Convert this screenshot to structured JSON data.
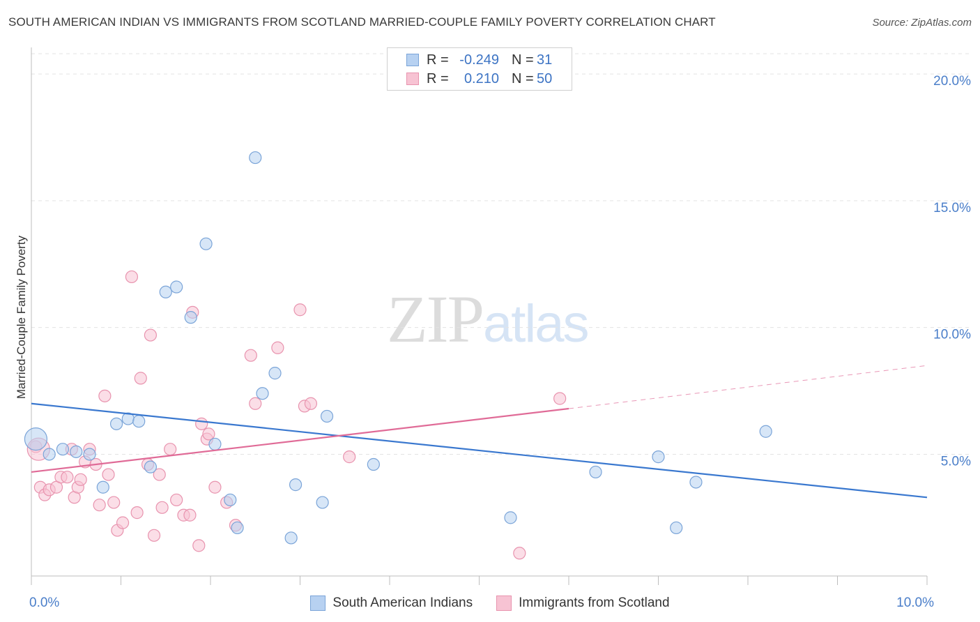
{
  "title": "SOUTH AMERICAN INDIAN VS IMMIGRANTS FROM SCOTLAND MARRIED-COUPLE FAMILY POVERTY CORRELATION CHART",
  "source": "Source: ZipAtlas.com",
  "watermark": {
    "zip": "ZIP",
    "atlas": "atlas"
  },
  "colors": {
    "blue_fill": "#b7d1f1",
    "blue_stroke": "#7aa4d8",
    "blue_line": "#3a78cf",
    "pink_fill": "#f7c3d3",
    "pink_stroke": "#e893ae",
    "pink_line": "#e06b97",
    "grid": "#e3e3e3",
    "axis": "#bdbdbd"
  },
  "stats": [
    {
      "r_label": "R =",
      "r_value": "-0.249",
      "n_label": "N =",
      "n_value": "31"
    },
    {
      "r_label": "R =",
      "r_value": "0.210",
      "n_label": "N =",
      "n_value": "50"
    }
  ],
  "chart_data": {
    "type": "scatter",
    "title": "SOUTH AMERICAN INDIAN VS IMMIGRANTS FROM SCOTLAND MARRIED-COUPLE FAMILY POVERTY CORRELATION CHART",
    "xlabel": "",
    "ylabel": "Married-Couple Family Poverty",
    "xlim": [
      0,
      10
    ],
    "ylim": [
      0.2,
      20.8
    ],
    "x_tick_labels": [
      {
        "value": 0,
        "label": "0.0%"
      },
      {
        "value": 10,
        "label": "10.0%"
      }
    ],
    "y_ticks": [
      {
        "value": 5,
        "label": "5.0%"
      },
      {
        "value": 10,
        "label": "10.0%"
      },
      {
        "value": 15,
        "label": "15.0%"
      },
      {
        "value": 20,
        "label": "20.0%"
      }
    ],
    "grid": true,
    "legend": [
      "South American Indians",
      "Immigrants from Scotland"
    ],
    "series": [
      {
        "name": "South American Indians",
        "color": "#b7d1f1",
        "points": [
          [
            0.05,
            5.6
          ],
          [
            0.2,
            5.0
          ],
          [
            0.35,
            5.2
          ],
          [
            0.5,
            5.1
          ],
          [
            0.65,
            5.0
          ],
          [
            0.8,
            3.7
          ],
          [
            0.95,
            6.2
          ],
          [
            1.08,
            6.4
          ],
          [
            1.2,
            6.3
          ],
          [
            1.33,
            4.5
          ],
          [
            1.5,
            11.4
          ],
          [
            1.62,
            11.6
          ],
          [
            1.78,
            10.4
          ],
          [
            1.95,
            13.3
          ],
          [
            2.05,
            5.4
          ],
          [
            2.22,
            3.2
          ],
          [
            2.3,
            2.1
          ],
          [
            2.5,
            16.7
          ],
          [
            2.58,
            7.4
          ],
          [
            2.72,
            8.2
          ],
          [
            2.9,
            1.7
          ],
          [
            2.95,
            3.8
          ],
          [
            3.25,
            3.1
          ],
          [
            3.3,
            6.5
          ],
          [
            3.82,
            4.6
          ],
          [
            5.35,
            2.5
          ],
          [
            6.3,
            4.3
          ],
          [
            7.0,
            4.9
          ],
          [
            7.2,
            2.1
          ],
          [
            7.42,
            3.9
          ],
          [
            8.2,
            5.9
          ]
        ],
        "trend": {
          "x0": 0,
          "y0": 7.0,
          "x1": 10,
          "y1": 3.3
        }
      },
      {
        "name": "Immigrants from Scotland",
        "color": "#f7c3d3",
        "points": [
          [
            0.05,
            5.3
          ],
          [
            0.1,
            3.7
          ],
          [
            0.15,
            3.4
          ],
          [
            0.2,
            3.6
          ],
          [
            0.28,
            3.7
          ],
          [
            0.33,
            4.1
          ],
          [
            0.4,
            4.1
          ],
          [
            0.45,
            5.2
          ],
          [
            0.48,
            3.3
          ],
          [
            0.52,
            3.7
          ],
          [
            0.55,
            4.0
          ],
          [
            0.6,
            4.7
          ],
          [
            0.65,
            5.2
          ],
          [
            0.72,
            4.6
          ],
          [
            0.76,
            3.0
          ],
          [
            0.82,
            7.3
          ],
          [
            0.86,
            4.2
          ],
          [
            0.92,
            3.1
          ],
          [
            0.96,
            2.0
          ],
          [
            1.02,
            2.3
          ],
          [
            1.12,
            12.0
          ],
          [
            1.18,
            2.7
          ],
          [
            1.22,
            8.0
          ],
          [
            1.3,
            4.6
          ],
          [
            1.33,
            9.7
          ],
          [
            1.37,
            1.8
          ],
          [
            1.43,
            4.2
          ],
          [
            1.46,
            2.9
          ],
          [
            1.55,
            5.2
          ],
          [
            1.62,
            3.2
          ],
          [
            1.7,
            2.6
          ],
          [
            1.77,
            2.6
          ],
          [
            1.8,
            10.6
          ],
          [
            1.87,
            1.4
          ],
          [
            1.9,
            6.2
          ],
          [
            1.96,
            5.6
          ],
          [
            1.98,
            5.8
          ],
          [
            2.05,
            3.7
          ],
          [
            2.18,
            3.1
          ],
          [
            2.28,
            2.2
          ],
          [
            2.45,
            8.9
          ],
          [
            2.5,
            7.0
          ],
          [
            2.75,
            9.2
          ],
          [
            3.0,
            10.7
          ],
          [
            3.05,
            6.9
          ],
          [
            3.12,
            7.0
          ],
          [
            3.55,
            4.9
          ],
          [
            5.45,
            1.1
          ],
          [
            5.9,
            7.2
          ],
          [
            0.08,
            5.2
          ]
        ],
        "trend": {
          "x0": 0,
          "y0": 4.3,
          "x1": 6.0,
          "y1": 6.8
        },
        "trend_dashed": {
          "x0": 6.0,
          "y0": 6.8,
          "x1": 10,
          "y1": 8.5
        }
      }
    ]
  }
}
